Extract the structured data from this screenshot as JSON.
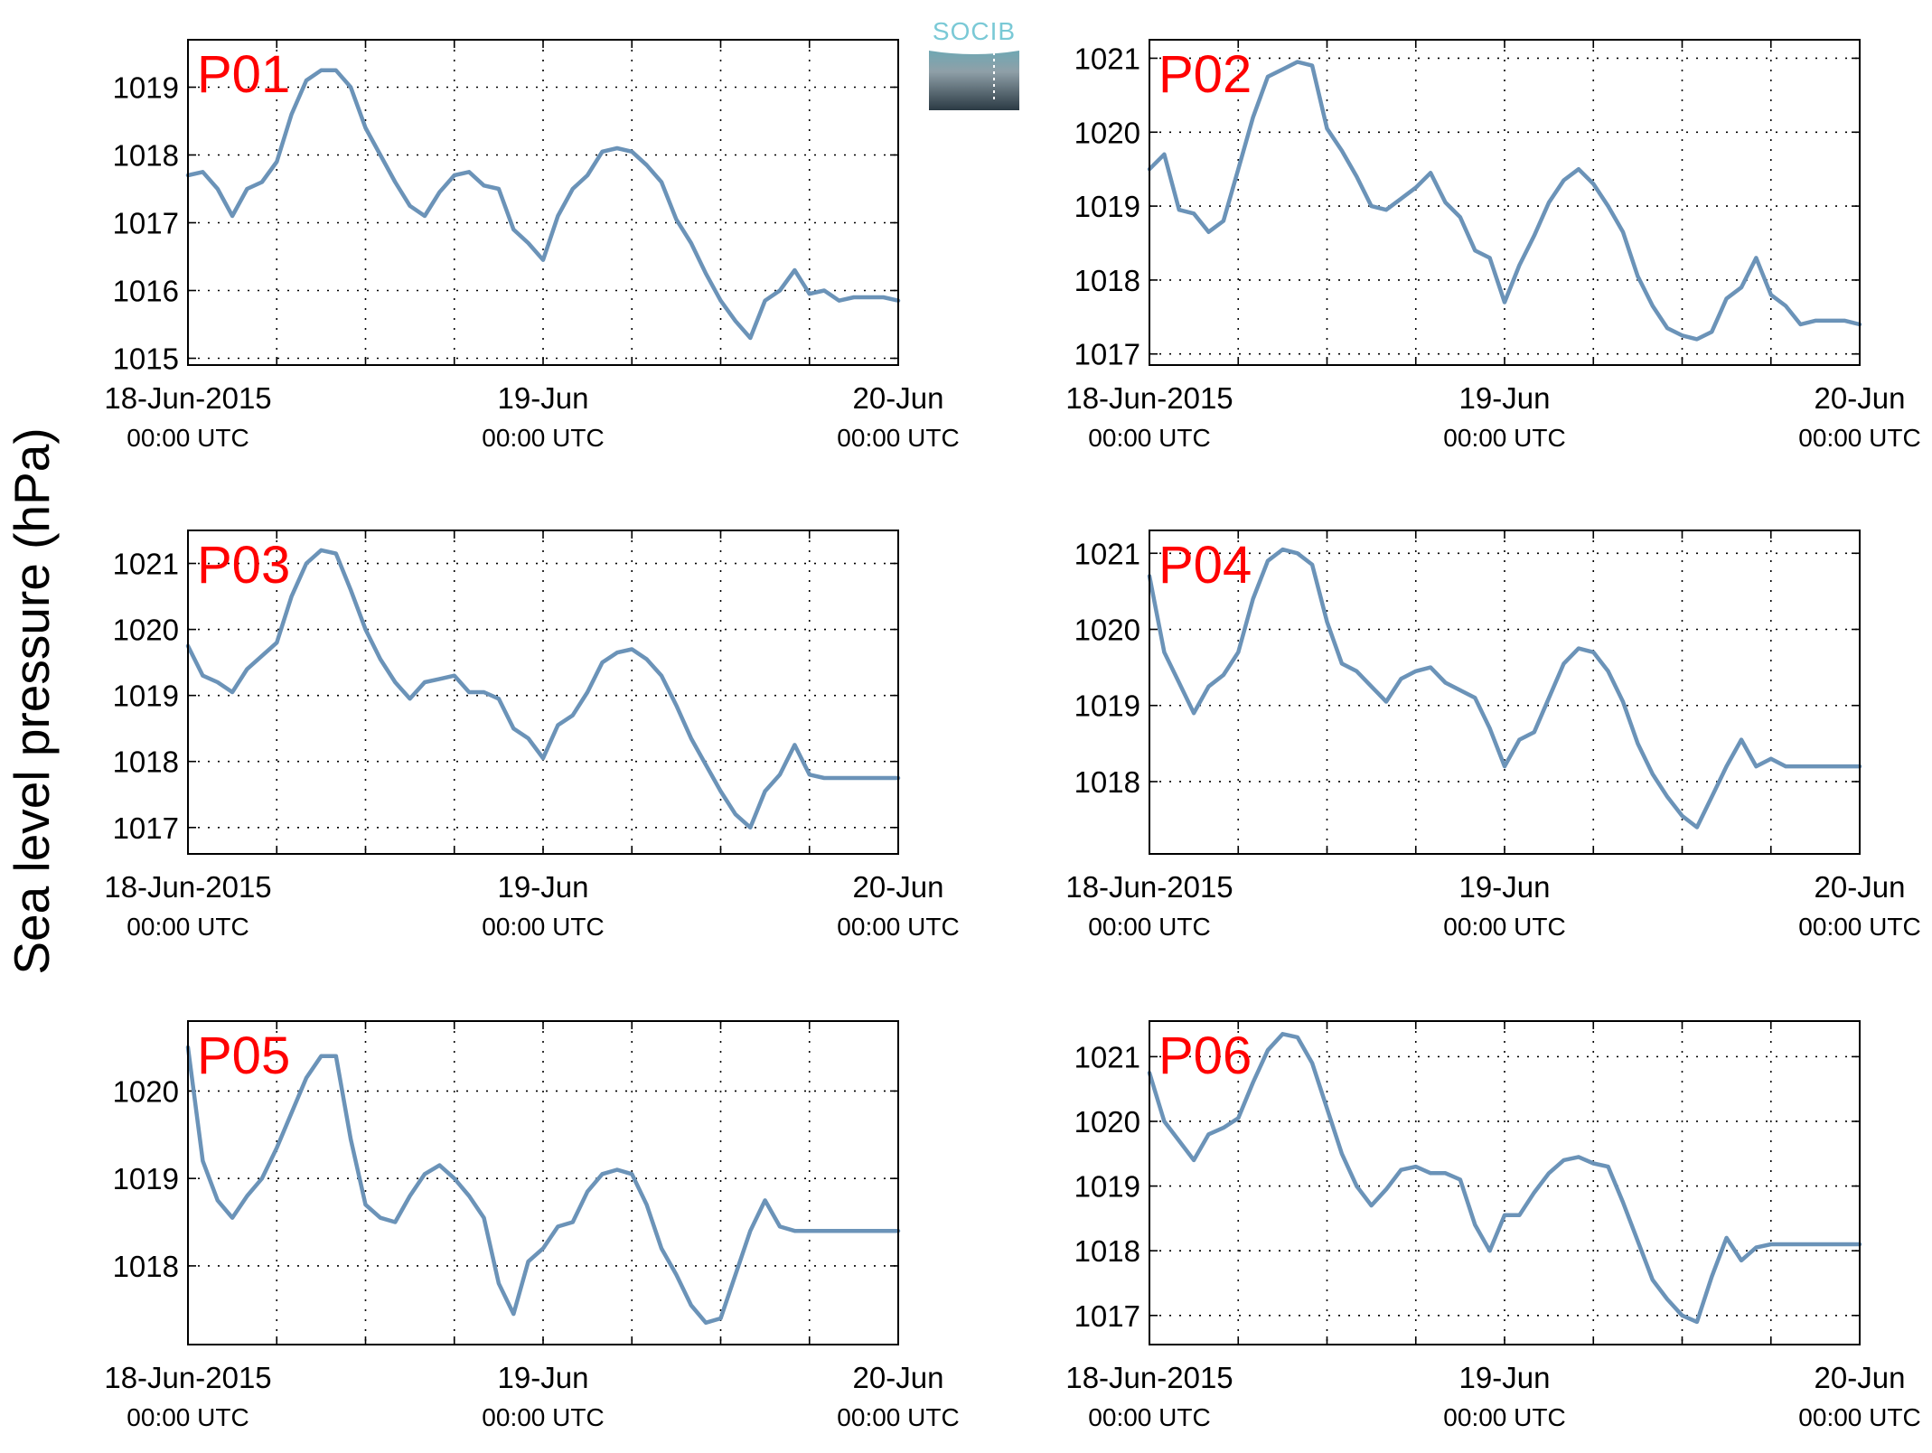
{
  "ylabel": "Sea level pressure (hPa)",
  "logo": {
    "text": "SOCIB"
  },
  "colors": {
    "series": "#6b93b8",
    "panel_label": "#ff0000",
    "logo_text": "#7ac9d6"
  },
  "chart_data": [
    {
      "type": "line",
      "label": "P01",
      "xlim": [
        0,
        48
      ],
      "x_ticks": [
        {
          "x": 0,
          "top": "18-Jun-2015",
          "bottom": "00:00 UTC"
        },
        {
          "x": 24,
          "top": "19-Jun",
          "bottom": "00:00 UTC"
        },
        {
          "x": 48,
          "top": "20-Jun",
          "bottom": "00:00 UTC"
        }
      ],
      "ylim": [
        1014.9,
        1019.7
      ],
      "yticks": [
        1015,
        1016,
        1017,
        1018,
        1019
      ],
      "grid": true,
      "x": [
        0,
        1,
        2,
        3,
        4,
        5,
        6,
        7,
        8,
        9,
        10,
        11,
        12,
        13,
        14,
        15,
        16,
        17,
        18,
        19,
        20,
        21,
        22,
        23,
        24,
        25,
        26,
        27,
        28,
        29,
        30,
        31,
        32,
        33,
        34,
        35,
        36,
        37,
        38,
        39,
        40,
        41,
        42,
        43,
        44,
        45,
        46,
        47,
        48
      ],
      "y": [
        1017.7,
        1017.75,
        1017.5,
        1017.1,
        1017.5,
        1017.6,
        1017.9,
        1018.6,
        1019.1,
        1019.25,
        1019.25,
        1019.0,
        1018.4,
        1018.0,
        1017.6,
        1017.25,
        1017.1,
        1017.45,
        1017.7,
        1017.75,
        1017.55,
        1017.5,
        1016.9,
        1016.7,
        1016.45,
        1017.1,
        1017.5,
        1017.7,
        1018.05,
        1018.1,
        1018.05,
        1017.85,
        1017.6,
        1017.05,
        1016.7,
        1016.25,
        1015.85,
        1015.55,
        1015.3,
        1015.85,
        1016.0,
        1016.3,
        1015.95,
        1016.0,
        1015.85,
        1015.9,
        1015.9,
        1015.9,
        1015.85
      ]
    },
    {
      "type": "line",
      "label": "P02",
      "xlim": [
        0,
        48
      ],
      "x_ticks": [
        {
          "x": 0,
          "top": "18-Jun-2015",
          "bottom": "00:00 UTC"
        },
        {
          "x": 24,
          "top": "19-Jun",
          "bottom": "00:00 UTC"
        },
        {
          "x": 48,
          "top": "20-Jun",
          "bottom": "00:00 UTC"
        }
      ],
      "ylim": [
        1016.85,
        1021.25
      ],
      "yticks": [
        1017,
        1018,
        1019,
        1020,
        1021
      ],
      "grid": true,
      "x": [
        0,
        1,
        2,
        3,
        4,
        5,
        6,
        7,
        8,
        9,
        10,
        11,
        12,
        13,
        14,
        15,
        16,
        17,
        18,
        19,
        20,
        21,
        22,
        23,
        24,
        25,
        26,
        27,
        28,
        29,
        30,
        31,
        32,
        33,
        34,
        35,
        36,
        37,
        38,
        39,
        40,
        41,
        42,
        43,
        44,
        45,
        46,
        47,
        48
      ],
      "y": [
        1019.5,
        1019.7,
        1018.95,
        1018.9,
        1018.65,
        1018.8,
        1019.5,
        1020.2,
        1020.75,
        1020.85,
        1020.95,
        1020.9,
        1020.05,
        1019.75,
        1019.4,
        1019.0,
        1018.95,
        1019.1,
        1019.25,
        1019.45,
        1019.05,
        1018.85,
        1018.4,
        1018.3,
        1017.7,
        1018.2,
        1018.6,
        1019.05,
        1019.35,
        1019.5,
        1019.3,
        1019.0,
        1018.65,
        1018.05,
        1017.65,
        1017.35,
        1017.25,
        1017.2,
        1017.3,
        1017.75,
        1017.9,
        1018.3,
        1017.8,
        1017.65,
        1017.4,
        1017.45,
        1017.45,
        1017.45,
        1017.4
      ]
    },
    {
      "type": "line",
      "label": "P03",
      "xlim": [
        0,
        48
      ],
      "x_ticks": [
        {
          "x": 0,
          "top": "18-Jun-2015",
          "bottom": "00:00 UTC"
        },
        {
          "x": 24,
          "top": "19-Jun",
          "bottom": "00:00 UTC"
        },
        {
          "x": 48,
          "top": "20-Jun",
          "bottom": "00:00 UTC"
        }
      ],
      "ylim": [
        1016.6,
        1021.5
      ],
      "yticks": [
        1017,
        1018,
        1019,
        1020,
        1021
      ],
      "grid": true,
      "x": [
        0,
        1,
        2,
        3,
        4,
        5,
        6,
        7,
        8,
        9,
        10,
        11,
        12,
        13,
        14,
        15,
        16,
        17,
        18,
        19,
        20,
        21,
        22,
        23,
        24,
        25,
        26,
        27,
        28,
        29,
        30,
        31,
        32,
        33,
        34,
        35,
        36,
        37,
        38,
        39,
        40,
        41,
        42,
        43,
        44,
        45,
        46,
        47,
        48
      ],
      "y": [
        1019.75,
        1019.3,
        1019.2,
        1019.05,
        1019.4,
        1019.6,
        1019.8,
        1020.5,
        1021.0,
        1021.2,
        1021.15,
        1020.6,
        1020.0,
        1019.55,
        1019.2,
        1018.95,
        1019.2,
        1019.25,
        1019.3,
        1019.05,
        1019.05,
        1018.95,
        1018.5,
        1018.35,
        1018.05,
        1018.55,
        1018.7,
        1019.05,
        1019.5,
        1019.65,
        1019.7,
        1019.55,
        1019.3,
        1018.85,
        1018.35,
        1017.95,
        1017.55,
        1017.2,
        1017.0,
        1017.55,
        1017.8,
        1018.25,
        1017.8,
        1017.75,
        1017.75,
        1017.75,
        1017.75,
        1017.75,
        1017.75
      ]
    },
    {
      "type": "line",
      "label": "P04",
      "xlim": [
        0,
        48
      ],
      "x_ticks": [
        {
          "x": 0,
          "top": "18-Jun-2015",
          "bottom": "00:00 UTC"
        },
        {
          "x": 24,
          "top": "19-Jun",
          "bottom": "00:00 UTC"
        },
        {
          "x": 48,
          "top": "20-Jun",
          "bottom": "00:00 UTC"
        }
      ],
      "ylim": [
        1017.05,
        1021.3
      ],
      "yticks": [
        1018,
        1019,
        1020,
        1021
      ],
      "grid": true,
      "x": [
        0,
        1,
        2,
        3,
        4,
        5,
        6,
        7,
        8,
        9,
        10,
        11,
        12,
        13,
        14,
        15,
        16,
        17,
        18,
        19,
        20,
        21,
        22,
        23,
        24,
        25,
        26,
        27,
        28,
        29,
        30,
        31,
        32,
        33,
        34,
        35,
        36,
        37,
        38,
        39,
        40,
        41,
        42,
        43,
        44,
        45,
        46,
        47,
        48
      ],
      "y": [
        1020.7,
        1019.7,
        1019.3,
        1018.9,
        1019.25,
        1019.4,
        1019.7,
        1020.4,
        1020.9,
        1021.05,
        1021.0,
        1020.85,
        1020.1,
        1019.55,
        1019.45,
        1019.25,
        1019.05,
        1019.35,
        1019.45,
        1019.5,
        1019.3,
        1019.2,
        1019.1,
        1018.7,
        1018.2,
        1018.55,
        1018.65,
        1019.1,
        1019.55,
        1019.75,
        1019.7,
        1019.45,
        1019.05,
        1018.5,
        1018.1,
        1017.8,
        1017.55,
        1017.4,
        1017.8,
        1018.2,
        1018.55,
        1018.2,
        1018.3,
        1018.2,
        1018.2,
        1018.2,
        1018.2,
        1018.2,
        1018.2
      ]
    },
    {
      "type": "line",
      "label": "P05",
      "xlim": [
        0,
        48
      ],
      "x_ticks": [
        {
          "x": 0,
          "top": "18-Jun-2015",
          "bottom": "00:00 UTC"
        },
        {
          "x": 24,
          "top": "19-Jun",
          "bottom": "00:00 UTC"
        },
        {
          "x": 48,
          "top": "20-Jun",
          "bottom": "00:00 UTC"
        }
      ],
      "ylim": [
        1017.1,
        1020.8
      ],
      "yticks": [
        1018,
        1019,
        1020
      ],
      "grid": true,
      "x": [
        0,
        1,
        2,
        3,
        4,
        5,
        6,
        7,
        8,
        9,
        10,
        11,
        12,
        13,
        14,
        15,
        16,
        17,
        18,
        19,
        20,
        21,
        22,
        23,
        24,
        25,
        26,
        27,
        28,
        29,
        30,
        31,
        32,
        33,
        34,
        35,
        36,
        37,
        38,
        39,
        40,
        41,
        42,
        43,
        44,
        45,
        46,
        47,
        48
      ],
      "y": [
        1020.5,
        1019.2,
        1018.75,
        1018.55,
        1018.8,
        1019.0,
        1019.35,
        1019.75,
        1020.15,
        1020.4,
        1020.4,
        1019.45,
        1018.7,
        1018.55,
        1018.5,
        1018.8,
        1019.05,
        1019.15,
        1019.0,
        1018.8,
        1018.55,
        1017.8,
        1017.45,
        1018.05,
        1018.2,
        1018.45,
        1018.5,
        1018.85,
        1019.05,
        1019.1,
        1019.05,
        1018.7,
        1018.2,
        1017.9,
        1017.55,
        1017.35,
        1017.4,
        1017.9,
        1018.4,
        1018.75,
        1018.45,
        1018.4,
        1018.4,
        1018.4,
        1018.4,
        1018.4,
        1018.4,
        1018.4,
        1018.4
      ]
    },
    {
      "type": "line",
      "label": "P06",
      "xlim": [
        0,
        48
      ],
      "x_ticks": [
        {
          "x": 0,
          "top": "18-Jun-2015",
          "bottom": "00:00 UTC"
        },
        {
          "x": 24,
          "top": "19-Jun",
          "bottom": "00:00 UTC"
        },
        {
          "x": 48,
          "top": "20-Jun",
          "bottom": "00:00 UTC"
        }
      ],
      "ylim": [
        1016.55,
        1021.55
      ],
      "yticks": [
        1017,
        1018,
        1019,
        1020,
        1021
      ],
      "grid": true,
      "x": [
        0,
        1,
        2,
        3,
        4,
        5,
        6,
        7,
        8,
        9,
        10,
        11,
        12,
        13,
        14,
        15,
        16,
        17,
        18,
        19,
        20,
        21,
        22,
        23,
        24,
        25,
        26,
        27,
        28,
        29,
        30,
        31,
        32,
        33,
        34,
        35,
        36,
        37,
        38,
        39,
        40,
        41,
        42,
        43,
        44,
        45,
        46,
        47,
        48
      ],
      "y": [
        1020.75,
        1020.0,
        1019.7,
        1019.4,
        1019.8,
        1019.9,
        1020.05,
        1020.6,
        1021.1,
        1021.35,
        1021.3,
        1020.9,
        1020.2,
        1019.5,
        1019.0,
        1018.7,
        1018.95,
        1019.25,
        1019.3,
        1019.2,
        1019.2,
        1019.1,
        1018.4,
        1018.0,
        1018.55,
        1018.55,
        1018.9,
        1019.2,
        1019.4,
        1019.45,
        1019.35,
        1019.3,
        1018.75,
        1018.15,
        1017.55,
        1017.25,
        1017.0,
        1016.9,
        1017.6,
        1018.2,
        1017.85,
        1018.05,
        1018.1,
        1018.1,
        1018.1,
        1018.1,
        1018.1,
        1018.1,
        1018.1
      ]
    }
  ]
}
